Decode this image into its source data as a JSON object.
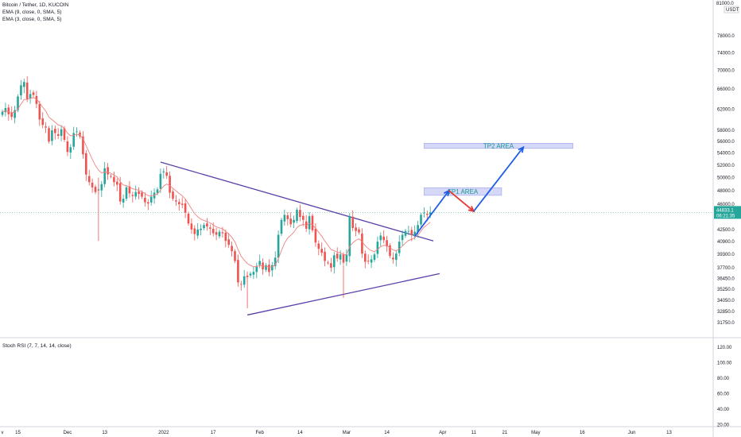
{
  "header": {
    "symbol_line": "Bitcoin / Tether, 1D, KUCOIN",
    "ema1": "EMA (9, close, 0, SMA, 5)",
    "ema2": "EMA (3, close, 0, SMA, 5)",
    "stoch_label": "Stoch RSI (7, 7, 14, 14, close)",
    "axis_top": "81000.0",
    "axis_currency": "USDT"
  },
  "price_tag": {
    "value": "44833.1",
    "countdown": "06:21:35"
  },
  "annotations": {
    "tp1": "TP1 AREA",
    "tp2": "TP2 AREA"
  },
  "colors": {
    "up": "#26a69a",
    "down": "#ef5350",
    "ema": "#f08080",
    "trendline": "#5b3fa8",
    "arrow_blue": "#1e5ee6",
    "arrow_red": "#e53935",
    "target_box": "#d5d8f7",
    "target_text": "#159a94",
    "price_line": "#26a69a"
  },
  "chart_data": {
    "type": "candlestick",
    "title": "Bitcoin / Tether, 1D, KUCOIN",
    "y_axis_type": "log",
    "ylim": [
      30800,
      86000
    ],
    "yticks": [
      "78000.0",
      "74000.0",
      "70000.0",
      "66000.0",
      "62000.0",
      "58000.0",
      "56000.0",
      "54000.0",
      "52000.0",
      "50000.0",
      "48000.0",
      "46000.0",
      "42500.0",
      "40900.0",
      "39300.0",
      "37700.0",
      "36450.0",
      "35250.0",
      "34050.0",
      "32850.0",
      "31750.0"
    ],
    "xticks": [
      {
        "label": "v",
        "day": 0
      },
      {
        "label": "15",
        "day": 5
      },
      {
        "label": "Dec",
        "day": 21
      },
      {
        "label": "13",
        "day": 33
      },
      {
        "label": "2022",
        "day": 52
      },
      {
        "label": "17",
        "day": 68
      },
      {
        "label": "Feb",
        "day": 83
      },
      {
        "label": "14",
        "day": 96
      },
      {
        "label": "Mar",
        "day": 111
      },
      {
        "label": "14",
        "day": 124
      },
      {
        "label": "Apr",
        "day": 142
      },
      {
        "label": "11",
        "day": 152
      },
      {
        "label": "21",
        "day": 162
      },
      {
        "label": "May",
        "day": 172
      },
      {
        "label": "16",
        "day": 187
      },
      {
        "label": "Jun",
        "day": 203
      },
      {
        "label": "13",
        "day": 215
      }
    ],
    "stoch_yticks": [
      "120.00",
      "100.00",
      "80.00",
      "60.00",
      "40.00",
      "20.00"
    ],
    "closes": [
      61500,
      62200,
      61000,
      60500,
      61800,
      64500,
      66800,
      67500,
      64000,
      65000,
      64800,
      63000,
      60000,
      59000,
      58500,
      56000,
      58000,
      57500,
      57000,
      58200,
      56300,
      54200,
      55000,
      57500,
      57800,
      56900,
      53800,
      50500,
      49300,
      48500,
      47800,
      48200,
      49000,
      51500,
      50500,
      50200,
      49300,
      48900,
      46400,
      46800,
      48500,
      47600,
      47200,
      47800,
      47500,
      47100,
      46300,
      46100,
      47100,
      47700,
      48200,
      50600,
      51000,
      50300,
      47700,
      46800,
      46400,
      46000,
      45900,
      44800,
      43300,
      42500,
      41900,
      42500,
      42600,
      43100,
      42900,
      42600,
      42000,
      41800,
      42200,
      42000,
      41000,
      40500,
      39700,
      38500,
      36000,
      35800,
      36700,
      36600,
      37000,
      37200,
      37900,
      38500,
      37500,
      38000,
      37200,
      38000,
      38900,
      41800,
      43800,
      44500,
      43900,
      43200,
      43800,
      45200,
      44200,
      43800,
      42600,
      44300,
      42400,
      40800,
      40000,
      39500,
      38500,
      38300,
      37700,
      39200,
      38800,
      39300,
      38300,
      39300,
      44300,
      42700,
      42300,
      42100,
      39400,
      38400,
      38500,
      38700,
      39300,
      40900,
      41700,
      41100,
      40300,
      39100,
      38700,
      39400,
      40900,
      41800,
      42300,
      42300,
      41800,
      42200,
      43100,
      44500,
      44800,
      44500,
      44833
    ],
    "ema_note": "EMA(9) overlay",
    "trendlines": [
      {
        "from": {
          "day": 51,
          "price": 52500
        },
        "to": {
          "day": 139,
          "price": 41000
        }
      },
      {
        "from": {
          "day": 79,
          "price": 32500
        },
        "to": {
          "day": 141,
          "price": 37000
        }
      }
    ],
    "targets": [
      {
        "label": "TP1 AREA",
        "price_low": 47300,
        "price_high": 48450,
        "day_start": 136,
        "day_end": 161
      },
      {
        "label": "TP2 AREA",
        "price_low": 54800,
        "price_high": 55700,
        "day_start": 136,
        "day_end": 184
      }
    ],
    "projection": {
      "blue_up": [
        {
          "day": 133,
          "price": 41600
        },
        {
          "day": 144,
          "price": 48000
        }
      ],
      "red_down": [
        {
          "day": 144,
          "price": 48000
        },
        {
          "day": 152,
          "price": 45000
        }
      ],
      "blue_up2": [
        {
          "day": 152,
          "price": 45000
        },
        {
          "day": 168,
          "price": 55000
        }
      ]
    },
    "last_price": 44833.1
  }
}
